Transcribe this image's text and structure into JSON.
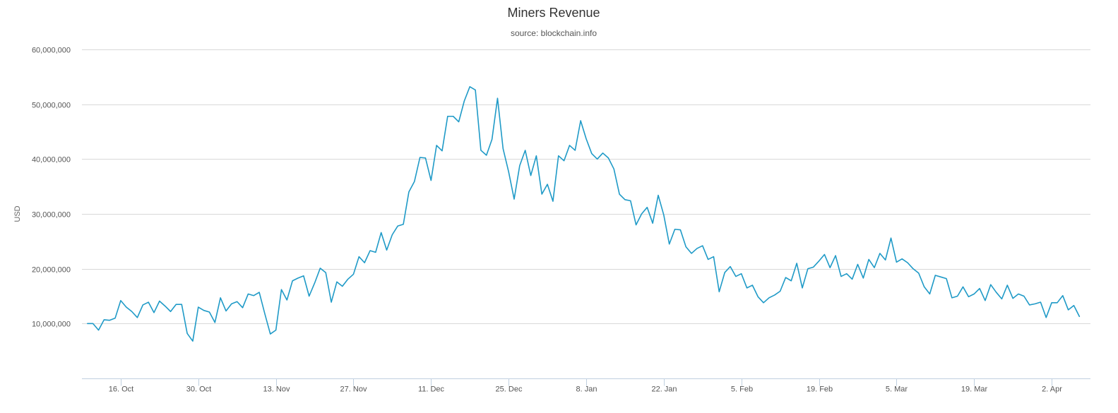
{
  "chart_data": {
    "type": "line",
    "title": "Miners Revenue",
    "subtitle": "source: blockchain.info",
    "xlabel": "",
    "ylabel": "USD",
    "x_start": "2017-10-10",
    "x_step_days": 1,
    "x_ticks": [
      {
        "label": "16. Oct",
        "date": "2017-10-16"
      },
      {
        "label": "30. Oct",
        "date": "2017-10-30"
      },
      {
        "label": "13. Nov",
        "date": "2017-11-13"
      },
      {
        "label": "27. Nov",
        "date": "2017-11-27"
      },
      {
        "label": "11. Dec",
        "date": "2017-12-11"
      },
      {
        "label": "25. Dec",
        "date": "2017-12-25"
      },
      {
        "label": "8. Jan",
        "date": "2018-01-08"
      },
      {
        "label": "22. Jan",
        "date": "2018-01-22"
      },
      {
        "label": "5. Feb",
        "date": "2018-02-05"
      },
      {
        "label": "19. Feb",
        "date": "2018-02-19"
      },
      {
        "label": "5. Mar",
        "date": "2018-03-05"
      },
      {
        "label": "19. Mar",
        "date": "2018-03-19"
      },
      {
        "label": "2. Apr",
        "date": "2018-04-02"
      }
    ],
    "x_range": [
      "2017-10-09",
      "2018-04-09"
    ],
    "y_ticks": [
      {
        "label": "10,000,000",
        "value": 10000000
      },
      {
        "label": "20,000,000",
        "value": 20000000
      },
      {
        "label": "30,000,000",
        "value": 30000000
      },
      {
        "label": "40,000,000",
        "value": 40000000
      },
      {
        "label": "50,000,000",
        "value": 50000000
      },
      {
        "label": "60,000,000",
        "value": 60000000
      }
    ],
    "ylim": [
      0,
      60000000
    ],
    "grid": true,
    "legend": "none",
    "series": [
      {
        "color": "#1f9ac7",
        "values": [
          10000000,
          10000000,
          8800000,
          10700000,
          10600000,
          11000000,
          14200000,
          13000000,
          12200000,
          11100000,
          13400000,
          13900000,
          12000000,
          14100000,
          13200000,
          12200000,
          13500000,
          13500000,
          8200000,
          6800000,
          13000000,
          12400000,
          12100000,
          10200000,
          14700000,
          12300000,
          13600000,
          14000000,
          12900000,
          15400000,
          15100000,
          15700000,
          11800000,
          8100000,
          8800000,
          16200000,
          14300000,
          17800000,
          18300000,
          18700000,
          15000000,
          17400000,
          20100000,
          19300000,
          13900000,
          17600000,
          16800000,
          18100000,
          19000000,
          22200000,
          21100000,
          23300000,
          23000000,
          26600000,
          23400000,
          26200000,
          27800000,
          28100000,
          34000000,
          35900000,
          40300000,
          40200000,
          36100000,
          42500000,
          41500000,
          47800000,
          47800000,
          46800000,
          50600000,
          53200000,
          52600000,
          41600000,
          40700000,
          43600000,
          51100000,
          41900000,
          37700000,
          32700000,
          38800000,
          41600000,
          37000000,
          40600000,
          33600000,
          35400000,
          32300000,
          40600000,
          39700000,
          42500000,
          41600000,
          47000000,
          43700000,
          41000000,
          40000000,
          41100000,
          40200000,
          38200000,
          33600000,
          32600000,
          32400000,
          28000000,
          30000000,
          31200000,
          28300000,
          33400000,
          29800000,
          24500000,
          27200000,
          27100000,
          24000000,
          22800000,
          23700000,
          24200000,
          21700000,
          22200000,
          15800000,
          19300000,
          20400000,
          18600000,
          19100000,
          16500000,
          17000000,
          14900000,
          13800000,
          14700000,
          15200000,
          15900000,
          18400000,
          17800000,
          21000000,
          16500000,
          20000000,
          20300000,
          21400000,
          22600000,
          20200000,
          22400000,
          18600000,
          19100000,
          18100000,
          20800000,
          18300000,
          21700000,
          20200000,
          22800000,
          21600000,
          25600000,
          21200000,
          21800000,
          21100000,
          20000000,
          19200000,
          16700000,
          15400000,
          18800000,
          18500000,
          18200000,
          14700000,
          15000000,
          16700000,
          14900000,
          15400000,
          16400000,
          14200000,
          17100000,
          15700000,
          14500000,
          17000000,
          14600000,
          15400000,
          15000000,
          13400000,
          13600000,
          13900000,
          11100000,
          13800000,
          13800000,
          15100000,
          12500000,
          13300000,
          11300000
        ]
      }
    ]
  }
}
